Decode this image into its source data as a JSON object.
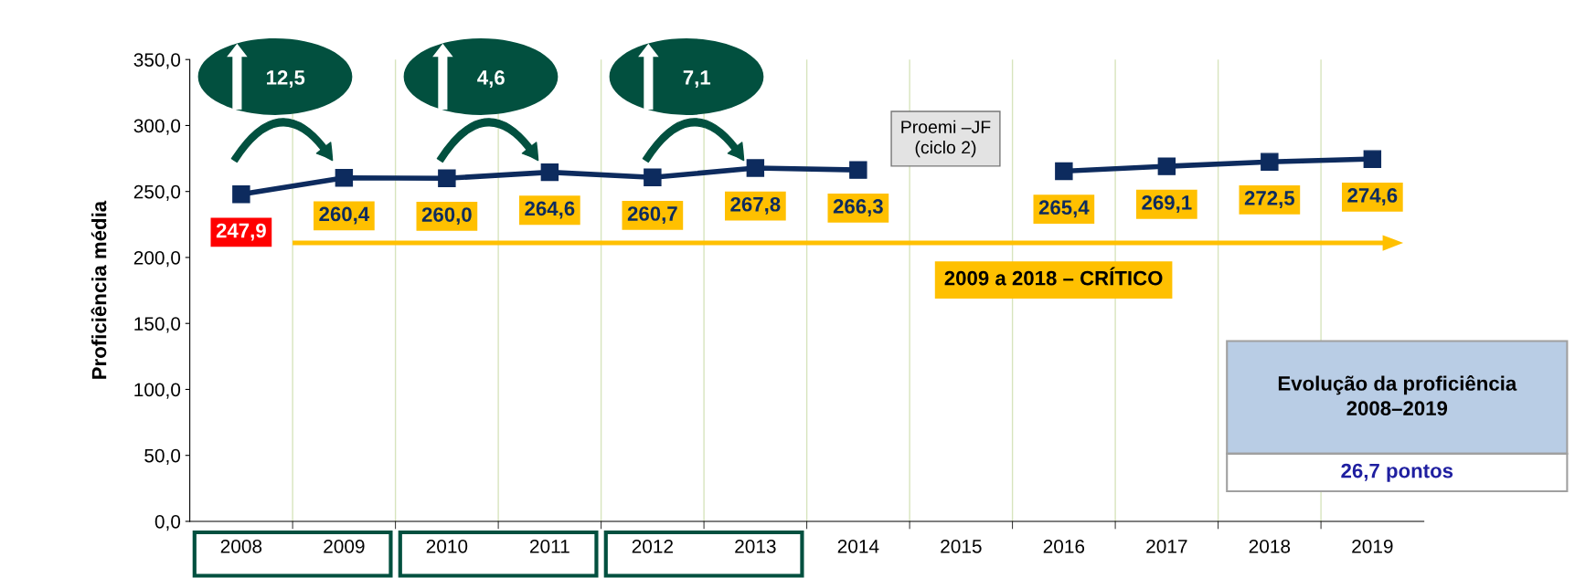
{
  "chart_data": {
    "type": "line",
    "ylabel": "Proficiência média",
    "categories": [
      "2008",
      "2009",
      "2010",
      "2011",
      "2012",
      "2013",
      "2014",
      "2015",
      "2016",
      "2017",
      "2018",
      "2019"
    ],
    "series": [
      {
        "color": "#0d2b5e",
        "values": [
          247.9,
          260.4,
          260.0,
          264.6,
          260.7,
          267.8,
          266.3,
          null,
          265.4,
          269.1,
          272.5,
          274.6
        ],
        "value_labels": [
          "247,9",
          "260,4",
          "260,0",
          "264,6",
          "260,7",
          "267,8",
          "266,3",
          null,
          "265,4",
          "269,1",
          "272,5",
          "274,6"
        ]
      }
    ],
    "ylim": [
      0,
      350
    ],
    "yticks": [
      {
        "value": 0,
        "label": "0,0"
      },
      {
        "value": 50,
        "label": "50,0"
      },
      {
        "value": 100,
        "label": "100,0"
      },
      {
        "value": 150,
        "label": "150,0"
      },
      {
        "value": 200,
        "label": "200,0"
      },
      {
        "value": 250,
        "label": "250,0"
      },
      {
        "value": 300,
        "label": "300,0"
      },
      {
        "value": 350,
        "label": "350,0"
      }
    ],
    "grid": "x",
    "marker": "square",
    "line_style": "solid",
    "legend": false,
    "annotations": [
      "12,5",
      "4,6",
      "7,1",
      "Proemi –JF\n(ciclo 2)",
      "2009 a 2018 – CRÍTICO",
      "Evolução da proficiência\n2008–2019",
      "26,7 pontos"
    ]
  }
}
